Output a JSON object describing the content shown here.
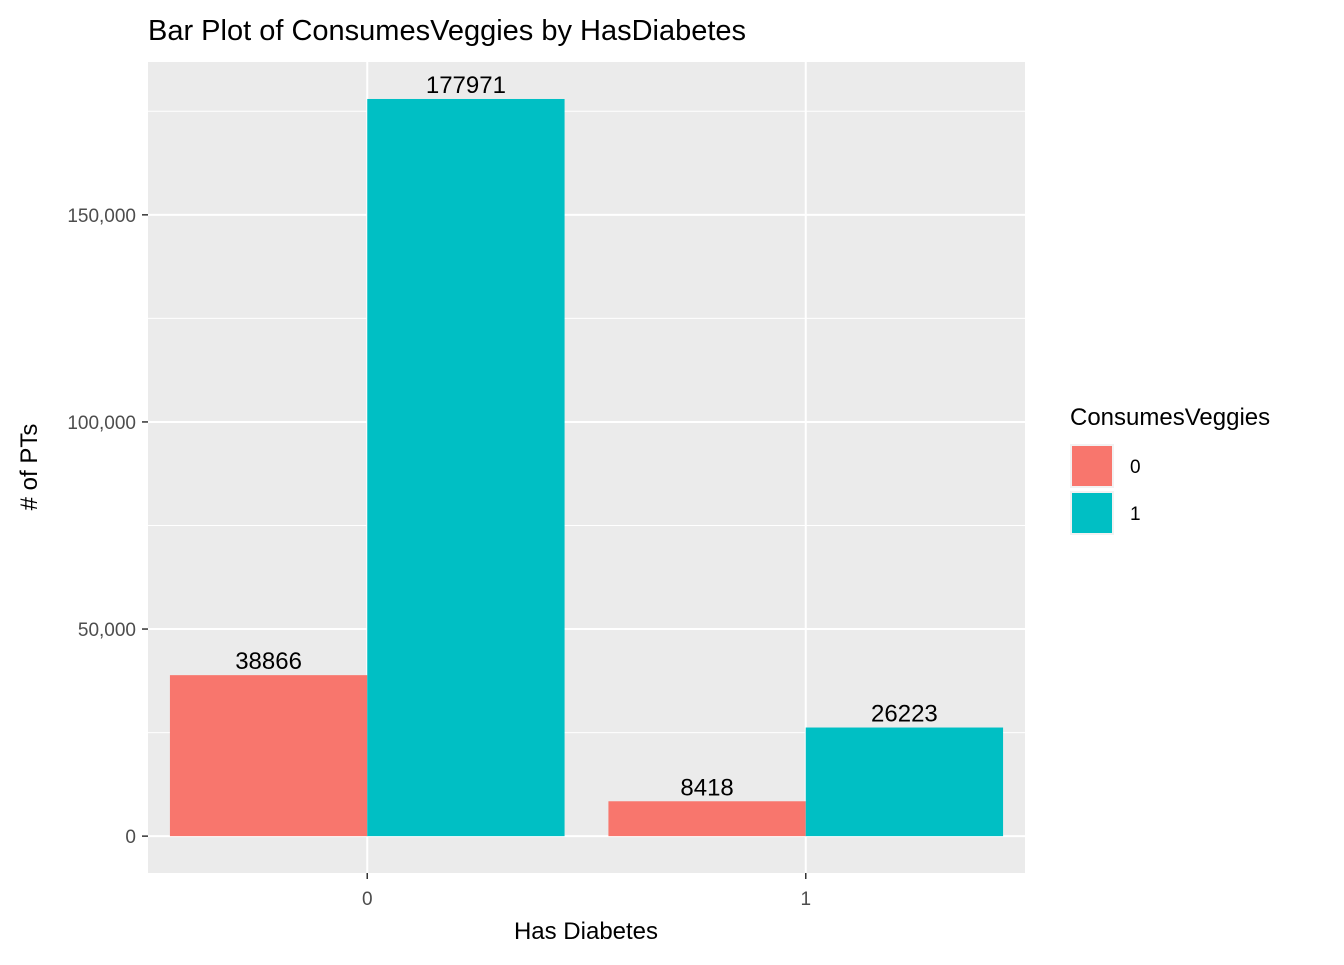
{
  "chart_data": {
    "type": "bar",
    "title": "Bar Plot of ConsumesVeggies by HasDiabetes",
    "xlabel": "Has Diabetes",
    "ylabel": "# of PTs",
    "categories": [
      "0",
      "1"
    ],
    "series": [
      {
        "name": "0",
        "color": "#F8766D",
        "values": [
          38866,
          8418
        ]
      },
      {
        "name": "1",
        "color": "#00BFC4",
        "values": [
          177971,
          26223
        ]
      }
    ],
    "data_labels": [
      [
        "38866",
        "8418"
      ],
      [
        "177971",
        "26223"
      ]
    ],
    "ylim": [
      -8900,
      186900
    ],
    "yticks": [
      0,
      50000,
      100000,
      150000
    ],
    "ytick_labels": [
      "0",
      "50,000",
      "100,000",
      "150,000"
    ],
    "grid": true,
    "panel_background": "#EBEBEB",
    "legend": {
      "title": "ConsumesVeggies",
      "position": "right"
    }
  }
}
